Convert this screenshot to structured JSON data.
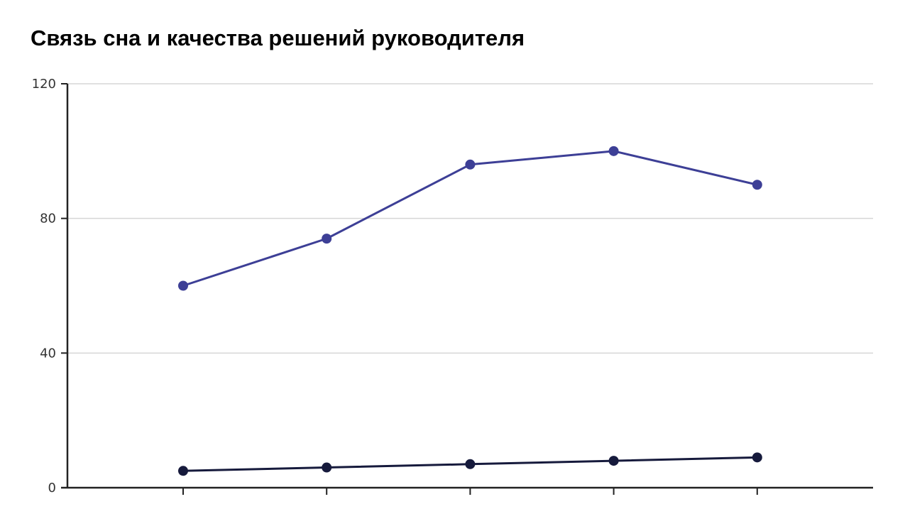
{
  "chart_data": {
    "type": "line",
    "title": "Связь сна и качества решений руководителя",
    "xlabel": "",
    "ylabel": "",
    "categories": [
      "",
      "",
      "",
      "",
      ""
    ],
    "ylim": [
      0,
      120
    ],
    "yticks": [
      0,
      40,
      80,
      120
    ],
    "grid": true,
    "legend": "none",
    "series": [
      {
        "values": [
          60,
          74,
          96,
          100,
          90
        ],
        "color": "#3d3f96"
      },
      {
        "values": [
          5,
          6,
          7,
          8,
          9
        ],
        "color": "#161a3c"
      }
    ],
    "colors": {
      "grid": "#d6d6d6",
      "axis": "#222222"
    }
  }
}
